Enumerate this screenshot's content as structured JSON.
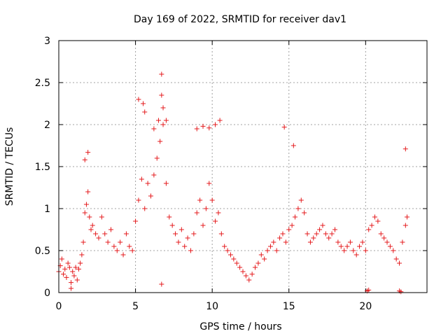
{
  "chart_data": {
    "type": "scatter",
    "title": "Day 169 of 2022, SRMTID for receiver dav1",
    "xlabel": "GPS time / hours",
    "ylabel": "SRMTID / TECUs",
    "xlim": [
      0,
      24
    ],
    "ylim": [
      0,
      3
    ],
    "xticks": [
      0,
      5,
      10,
      15,
      20
    ],
    "xtick_labels": [
      "0",
      "5",
      "10",
      "15",
      "20"
    ],
    "yticks": [
      0,
      0.5,
      1,
      1.5,
      2,
      2.5,
      3
    ],
    "ytick_labels": [
      "0",
      "0.5",
      "1",
      "1.5",
      "2",
      "2.5",
      "3"
    ],
    "grid": true,
    "marker": "+",
    "series": [
      {
        "name": "SRMTID",
        "color": "#e41a1c",
        "points": [
          [
            0.0,
            0.25
          ],
          [
            0.1,
            0.32
          ],
          [
            0.2,
            0.4
          ],
          [
            0.3,
            0.22
          ],
          [
            0.4,
            0.28
          ],
          [
            0.5,
            0.18
          ],
          [
            0.6,
            0.35
          ],
          [
            0.7,
            0.3
          ],
          [
            0.8,
            0.12
          ],
          [
            0.9,
            0.25
          ],
          [
            1.0,
            0.2
          ],
          [
            1.1,
            0.3
          ],
          [
            1.2,
            0.15
          ],
          [
            1.3,
            0.28
          ],
          [
            1.4,
            0.35
          ],
          [
            1.5,
            0.45
          ],
          [
            1.6,
            0.6
          ],
          [
            1.7,
            0.95
          ],
          [
            1.8,
            1.05
          ],
          [
            1.9,
            1.2
          ],
          [
            2.0,
            0.9
          ],
          [
            2.1,
            0.75
          ],
          [
            2.2,
            0.8
          ],
          [
            2.4,
            0.7
          ],
          [
            2.6,
            0.65
          ],
          [
            2.8,
            0.9
          ],
          [
            3.0,
            0.7
          ],
          [
            3.2,
            0.6
          ],
          [
            3.4,
            0.75
          ],
          [
            3.6,
            0.55
          ],
          [
            3.8,
            0.5
          ],
          [
            4.0,
            0.6
          ],
          [
            4.2,
            0.45
          ],
          [
            4.4,
            0.7
          ],
          [
            4.6,
            0.55
          ],
          [
            4.8,
            0.5
          ],
          [
            5.0,
            0.85
          ],
          [
            5.2,
            1.1
          ],
          [
            5.4,
            1.35
          ],
          [
            5.6,
            1.0
          ],
          [
            5.8,
            1.3
          ],
          [
            6.0,
            1.15
          ],
          [
            6.2,
            1.4
          ],
          [
            6.4,
            1.6
          ],
          [
            6.6,
            1.8
          ],
          [
            6.8,
            2.0
          ],
          [
            7.0,
            1.3
          ],
          [
            7.2,
            0.9
          ],
          [
            7.4,
            0.8
          ],
          [
            7.6,
            0.7
          ],
          [
            7.8,
            0.6
          ],
          [
            8.0,
            0.75
          ],
          [
            8.2,
            0.55
          ],
          [
            8.4,
            0.65
          ],
          [
            8.6,
            0.5
          ],
          [
            8.8,
            0.7
          ],
          [
            9.0,
            0.95
          ],
          [
            9.2,
            1.1
          ],
          [
            9.4,
            0.8
          ],
          [
            9.6,
            1.0
          ],
          [
            9.8,
            1.3
          ],
          [
            10.0,
            1.1
          ],
          [
            10.2,
            0.85
          ],
          [
            10.4,
            0.95
          ],
          [
            10.6,
            0.7
          ],
          [
            10.8,
            0.55
          ],
          [
            11.0,
            0.5
          ],
          [
            11.2,
            0.45
          ],
          [
            11.4,
            0.4
          ],
          [
            11.6,
            0.35
          ],
          [
            11.8,
            0.3
          ],
          [
            12.0,
            0.25
          ],
          [
            12.2,
            0.2
          ],
          [
            12.4,
            0.15
          ],
          [
            12.6,
            0.22
          ],
          [
            12.8,
            0.3
          ],
          [
            13.0,
            0.35
          ],
          [
            13.2,
            0.45
          ],
          [
            13.4,
            0.4
          ],
          [
            13.6,
            0.5
          ],
          [
            13.8,
            0.55
          ],
          [
            14.0,
            0.6
          ],
          [
            14.2,
            0.5
          ],
          [
            14.4,
            0.65
          ],
          [
            14.6,
            0.7
          ],
          [
            14.8,
            0.6
          ],
          [
            15.0,
            0.75
          ],
          [
            15.2,
            0.8
          ],
          [
            15.4,
            0.9
          ],
          [
            15.6,
            1.0
          ],
          [
            15.8,
            1.1
          ],
          [
            16.0,
            0.95
          ],
          [
            16.2,
            0.7
          ],
          [
            16.4,
            0.6
          ],
          [
            16.6,
            0.65
          ],
          [
            16.8,
            0.7
          ],
          [
            17.0,
            0.75
          ],
          [
            17.2,
            0.8
          ],
          [
            17.4,
            0.7
          ],
          [
            17.6,
            0.65
          ],
          [
            17.8,
            0.7
          ],
          [
            18.0,
            0.75
          ],
          [
            18.2,
            0.6
          ],
          [
            18.4,
            0.55
          ],
          [
            18.6,
            0.5
          ],
          [
            18.8,
            0.55
          ],
          [
            19.0,
            0.6
          ],
          [
            19.2,
            0.5
          ],
          [
            19.4,
            0.45
          ],
          [
            19.6,
            0.55
          ],
          [
            19.8,
            0.6
          ],
          [
            20.0,
            0.5
          ],
          [
            20.2,
            0.75
          ],
          [
            20.4,
            0.8
          ],
          [
            20.6,
            0.9
          ],
          [
            20.8,
            0.85
          ],
          [
            21.0,
            0.7
          ],
          [
            21.2,
            0.65
          ],
          [
            21.4,
            0.6
          ],
          [
            21.6,
            0.55
          ],
          [
            21.8,
            0.5
          ],
          [
            22.0,
            0.4
          ],
          [
            22.2,
            0.35
          ],
          [
            22.4,
            0.6
          ],
          [
            22.6,
            0.8
          ],
          [
            22.7,
            0.9
          ],
          [
            1.7,
            1.58
          ],
          [
            1.9,
            1.67
          ],
          [
            5.2,
            2.3
          ],
          [
            5.5,
            2.25
          ],
          [
            5.6,
            2.15
          ],
          [
            6.2,
            1.95
          ],
          [
            6.5,
            2.05
          ],
          [
            6.7,
            2.6
          ],
          [
            6.7,
            2.35
          ],
          [
            6.8,
            2.2
          ],
          [
            7.0,
            2.05
          ],
          [
            9.0,
            1.95
          ],
          [
            9.4,
            1.98
          ],
          [
            9.8,
            1.96
          ],
          [
            10.2,
            2.0
          ],
          [
            10.5,
            2.05
          ],
          [
            14.7,
            1.97
          ],
          [
            15.3,
            1.75
          ],
          [
            22.6,
            1.71
          ],
          [
            6.7,
            0.1
          ],
          [
            0.8,
            0.05
          ],
          [
            20.1,
            0.02
          ],
          [
            20.2,
            0.03
          ],
          [
            22.2,
            0.02
          ],
          [
            22.3,
            0.01
          ]
        ]
      }
    ]
  }
}
